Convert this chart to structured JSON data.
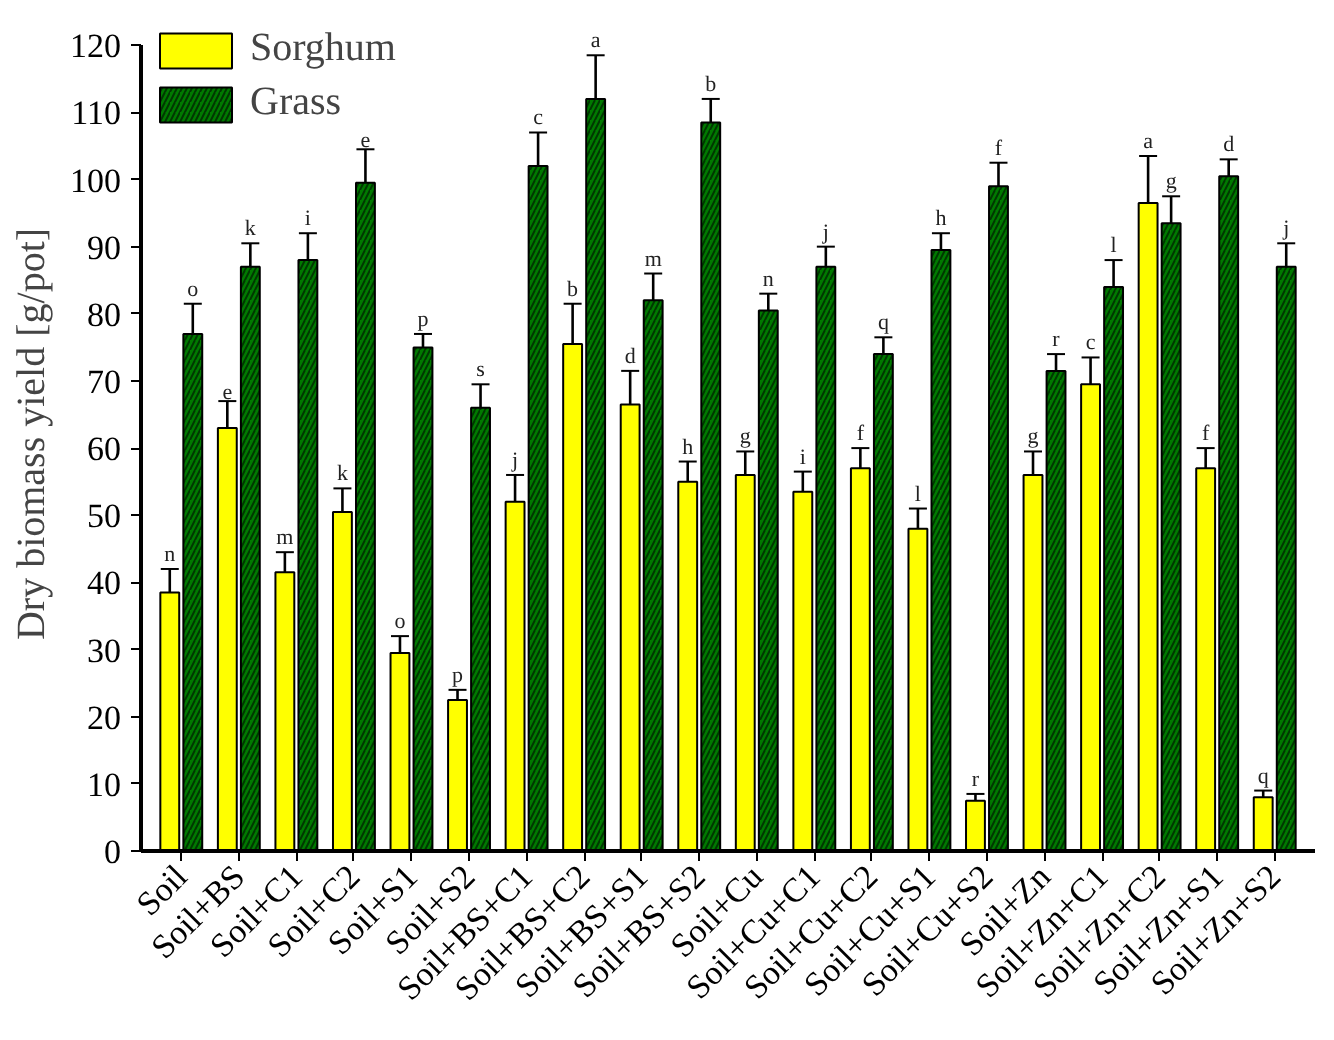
{
  "chart_data": {
    "type": "bar",
    "ylabel": "Dry biomass yield [g/pot]",
    "categories": [
      "Soil",
      "Soil+BS",
      "Soil+C1",
      "Soil+C2",
      "Soil+S1",
      "Soil+S2",
      "Soil+BS+C1",
      "Soil+BS+C2",
      "Soil+BS+S1",
      "Soil+BS+S2",
      "Soil+Cu",
      "Soil+Cu+C1",
      "Soil+Cu+C2",
      "Soil+Cu+S1",
      "Soil+Cu+S2",
      "Soil+Zn",
      "Soil+Zn+C1",
      "Soil+Zn+C2",
      "Soil+Zn+S1",
      "Soil+Zn+S2"
    ],
    "series": [
      {
        "name": "Sorghum",
        "color": "#ffff00",
        "values": [
          38.5,
          63,
          41.5,
          50.5,
          29.5,
          22.5,
          52,
          75.5,
          66.5,
          55,
          56,
          53.5,
          57,
          48,
          7.5,
          56,
          69.5,
          96.5,
          57,
          8
        ],
        "errors": [
          3.5,
          4,
          3,
          3.5,
          2.5,
          1.5,
          4,
          6,
          5,
          3,
          3.5,
          3,
          3,
          3,
          1,
          3.5,
          4,
          7,
          3,
          1
        ]
      },
      {
        "name": "Grass",
        "color": "#007a00",
        "values": [
          77,
          87,
          88,
          99.5,
          75,
          66,
          102,
          112,
          82,
          108.5,
          80.5,
          87,
          74,
          89.5,
          99,
          71.5,
          84,
          93.5,
          100.5,
          87
        ],
        "errors": [
          4.5,
          3.5,
          4,
          5,
          2,
          3.5,
          5,
          6.5,
          4,
          3.5,
          2.5,
          3,
          2.5,
          2.5,
          3.5,
          2.5,
          4,
          4,
          2.5,
          3.5
        ]
      }
    ],
    "annotations": [
      {
        "text": "n",
        "x": "Soil",
        "y": 42
      },
      {
        "text": "o",
        "x": "Soil",
        "y": 81.5
      },
      {
        "text": "e",
        "x": "Soil+BS",
        "y": 67
      },
      {
        "text": "k",
        "x": "Soil+BS",
        "y": 90.5
      },
      {
        "text": "m",
        "x": "Soil+C1",
        "y": 44.5
      },
      {
        "text": "i",
        "x": "Soil+C1",
        "y": 92
      },
      {
        "text": "k",
        "x": "Soil+C2",
        "y": 54
      },
      {
        "text": "e",
        "x": "Soil+C2",
        "y": 104.5
      },
      {
        "text": "o",
        "x": "Soil+S1",
        "y": 32
      },
      {
        "text": "p",
        "x": "Soil+S1",
        "y": 77
      },
      {
        "text": "p",
        "x": "Soil+S2",
        "y": 24
      },
      {
        "text": "s",
        "x": "Soil+S2",
        "y": 69.5
      },
      {
        "text": "j",
        "x": "Soil+BS+C1",
        "y": 56
      },
      {
        "text": "c",
        "x": "Soil+BS+C1",
        "y": 107
      },
      {
        "text": "b",
        "x": "Soil+BS+C2",
        "y": 81.5
      },
      {
        "text": "a",
        "x": "Soil+BS+C2",
        "y": 118.5
      },
      {
        "text": "d",
        "x": "Soil+BS+S1",
        "y": 71.5
      },
      {
        "text": "m",
        "x": "Soil+BS+S1",
        "y": 86
      },
      {
        "text": "h",
        "x": "Soil+BS+S2",
        "y": 58
      },
      {
        "text": "b",
        "x": "Soil+BS+S2",
        "y": 112
      },
      {
        "text": "g",
        "x": "Soil+Cu",
        "y": 59.5
      },
      {
        "text": "n",
        "x": "Soil+Cu",
        "y": 83
      },
      {
        "text": "i",
        "x": "Soil+Cu+C1",
        "y": 56.5
      },
      {
        "text": "j",
        "x": "Soil+Cu+C1",
        "y": 90
      },
      {
        "text": "f",
        "x": "Soil+Cu+C2",
        "y": 60
      },
      {
        "text": "q",
        "x": "Soil+Cu+C2",
        "y": 76.5
      },
      {
        "text": "l",
        "x": "Soil+Cu+S1",
        "y": 51
      },
      {
        "text": "h",
        "x": "Soil+Cu+S1",
        "y": 92
      },
      {
        "text": "r",
        "x": "Soil+Cu+S2",
        "y": 8.5
      },
      {
        "text": "f",
        "x": "Soil+Cu+S2",
        "y": 102.5
      },
      {
        "text": "g",
        "x": "Soil+Zn",
        "y": 59.5
      },
      {
        "text": "r",
        "x": "Soil+Zn",
        "y": 74
      },
      {
        "text": "c",
        "x": "Soil+Zn+C1",
        "y": 73.5
      },
      {
        "text": "l",
        "x": "Soil+Zn+C1",
        "y": 88
      },
      {
        "text": "a",
        "x": "Soil+Zn+C2",
        "y": 103.5
      },
      {
        "text": "g",
        "x": "Soil+Zn+C2",
        "y": 97.5
      },
      {
        "text": "f",
        "x": "Soil+Zn+S1",
        "y": 60
      },
      {
        "text": "d",
        "x": "Soil+Zn+S1",
        "y": 103
      },
      {
        "text": "q",
        "x": "Soil+Zn+S2",
        "y": 9
      },
      {
        "text": "j",
        "x": "Soil+Zn+S2",
        "y": 90.5
      }
    ],
    "ylim": [
      0,
      120
    ],
    "yticks": [
      0,
      10,
      20,
      30,
      40,
      50,
      60,
      70,
      80,
      90,
      100,
      110,
      120
    ],
    "grid": false,
    "legend": "top left"
  }
}
